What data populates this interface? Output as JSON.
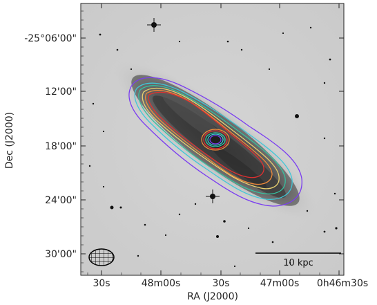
{
  "figure": {
    "xlabel": "RA (J2000)",
    "ylabel": "Dec (J2000)",
    "x_ticks": [
      "30s",
      "48m00s",
      "30s",
      "47m00s",
      "0h46m30s"
    ],
    "y_ticks": [
      "-25°06'00\"",
      "12'00\"",
      "18'00\"",
      "24'00\"",
      "30'00\""
    ],
    "scalebar_label": "10 kpc",
    "contour_colors": [
      "#7a3df0",
      "#3fc8d8",
      "#35c2a0",
      "#e8d070",
      "#f08a3a",
      "#e03030"
    ],
    "beam_icon": "hatched-ellipse"
  }
}
